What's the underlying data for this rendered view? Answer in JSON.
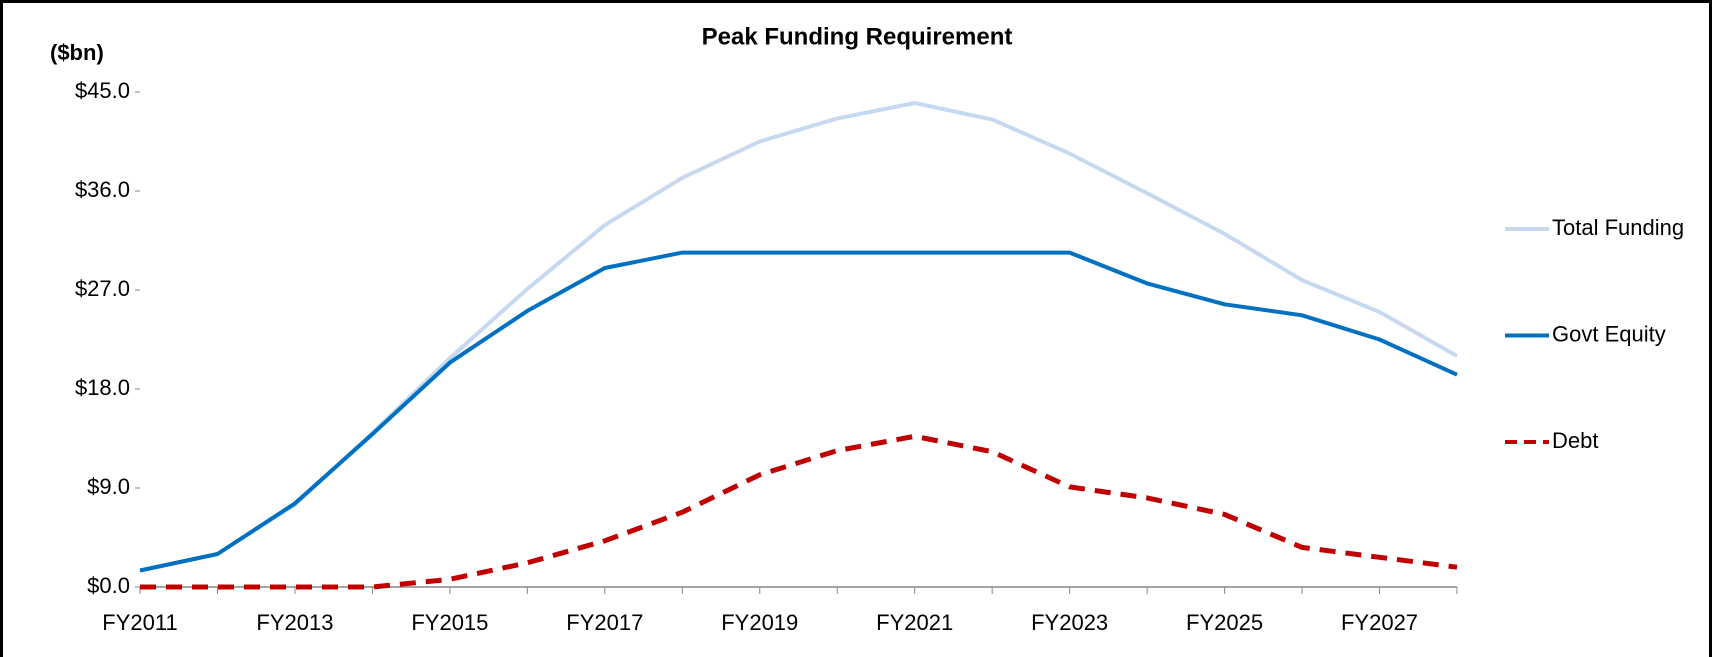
{
  "chart_data": {
    "type": "line",
    "title": "Peak Funding Requirement",
    "y_label": "($bn)",
    "categories": [
      "FY2011",
      null,
      "FY2013",
      null,
      "FY2015",
      null,
      "FY2017",
      null,
      "FY2019",
      null,
      "FY2021",
      null,
      "FY2023",
      null,
      "FY2025",
      null,
      "FY2027",
      null
    ],
    "series": [
      {
        "name": "Total Funding",
        "color": "#c6d9f1",
        "style": "solid",
        "values": [
          1.5,
          3.0,
          7.5,
          14.0,
          20.8,
          27.1,
          32.9,
          37.2,
          40.5,
          42.6,
          44.0,
          42.5,
          39.4,
          35.8,
          32.1,
          27.9,
          25.0,
          21.0
        ]
      },
      {
        "name": "Govt Equity",
        "color": "#0070c0",
        "style": "solid",
        "values": [
          1.5,
          3.0,
          7.6,
          13.9,
          20.4,
          25.1,
          29.0,
          30.4,
          30.4,
          30.4,
          30.4,
          30.4,
          30.4,
          27.6,
          25.7,
          24.7,
          22.5,
          19.3
        ]
      },
      {
        "name": "Debt",
        "color": "#c00000",
        "style": "dashed",
        "values": [
          0,
          0,
          0,
          0,
          0.7,
          2.2,
          4.2,
          6.8,
          10.2,
          12.4,
          13.7,
          12.3,
          9.1,
          8.1,
          6.6,
          3.6,
          2.7,
          1.8
        ]
      }
    ],
    "ylim": [
      0,
      45
    ],
    "yticks": [
      {
        "value": 0,
        "label": "$0.0"
      },
      {
        "value": 9,
        "label": "$9.0"
      },
      {
        "value": 18,
        "label": "$18.0"
      },
      {
        "value": 27,
        "label": "$27.0"
      },
      {
        "value": 36,
        "label": "$36.0"
      },
      {
        "value": 45,
        "label": "$45.0"
      }
    ],
    "grid": false,
    "legend": "right"
  }
}
